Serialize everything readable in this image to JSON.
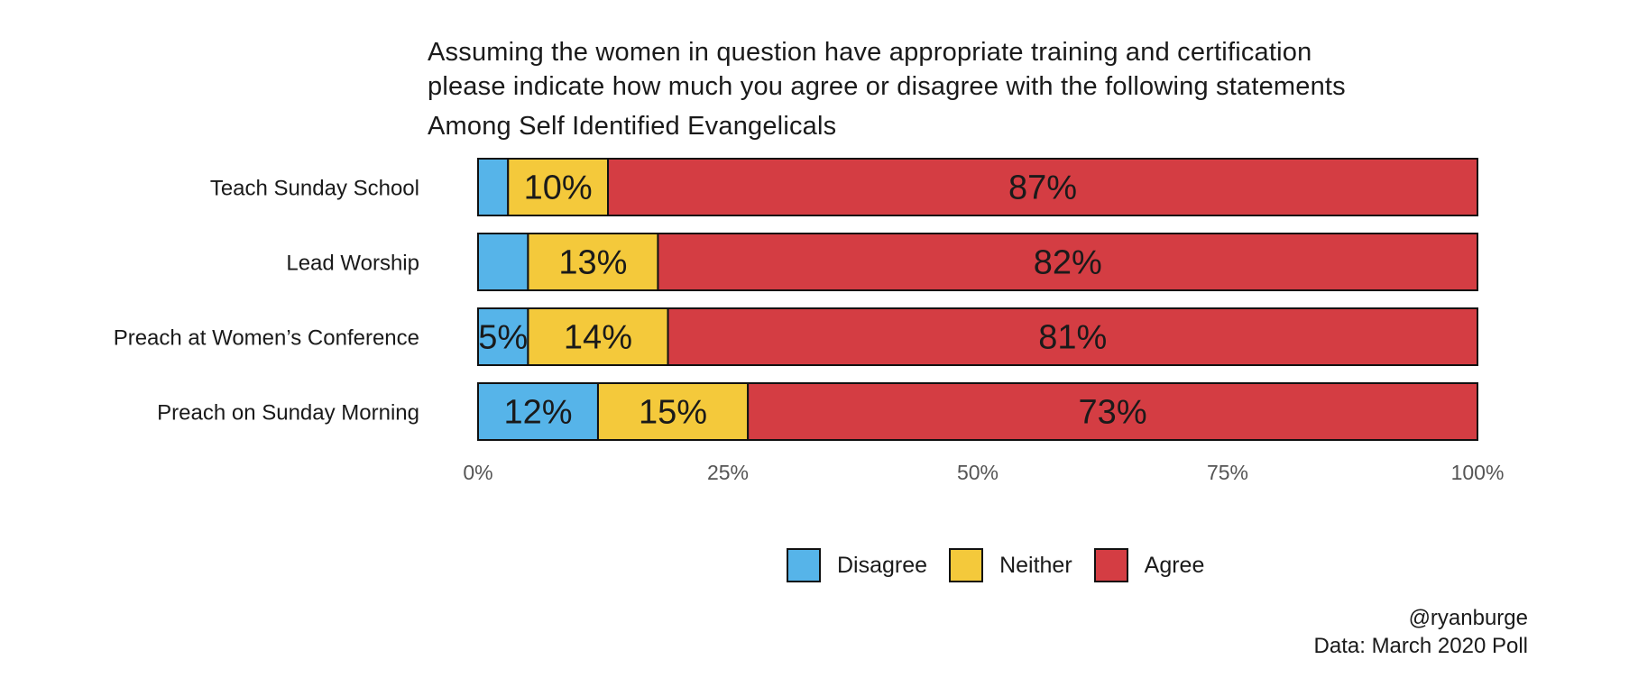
{
  "titles": {
    "line1": "Assuming the women in question have appropriate training and certification",
    "line2": "please indicate how much you agree or disagree with the following statements",
    "subtitle": "Among Self Identified Evangelicals"
  },
  "credits": {
    "handle": "@ryanburge",
    "source": "Data: March 2020 Poll"
  },
  "chart_data": {
    "type": "bar",
    "orientation": "horizontal",
    "stacked": true,
    "categories": [
      "Teach Sunday School",
      "Lead Worship",
      "Preach at Women’s Conference",
      "Preach on Sunday Morning"
    ],
    "series": [
      {
        "name": "Disagree",
        "color": "#56b4e9",
        "values": [
          3,
          5,
          5,
          12
        ],
        "labels": [
          "",
          "",
          "5%",
          "12%"
        ]
      },
      {
        "name": "Neither",
        "color": "#f4c93b",
        "values": [
          10,
          13,
          14,
          15
        ],
        "labels": [
          "10%",
          "13%",
          "14%",
          "15%"
        ]
      },
      {
        "name": "Agree",
        "color": "#d43d43",
        "values": [
          87,
          82,
          81,
          73
        ],
        "labels": [
          "87%",
          "82%",
          "81%",
          "73%"
        ]
      }
    ],
    "xlim": [
      0,
      100
    ],
    "x_ticks": [
      0,
      25,
      50,
      75,
      100
    ],
    "x_tick_labels": [
      "0%",
      "25%",
      "50%",
      "75%",
      "100%"
    ],
    "legend_position": "bottom",
    "grid": false
  }
}
